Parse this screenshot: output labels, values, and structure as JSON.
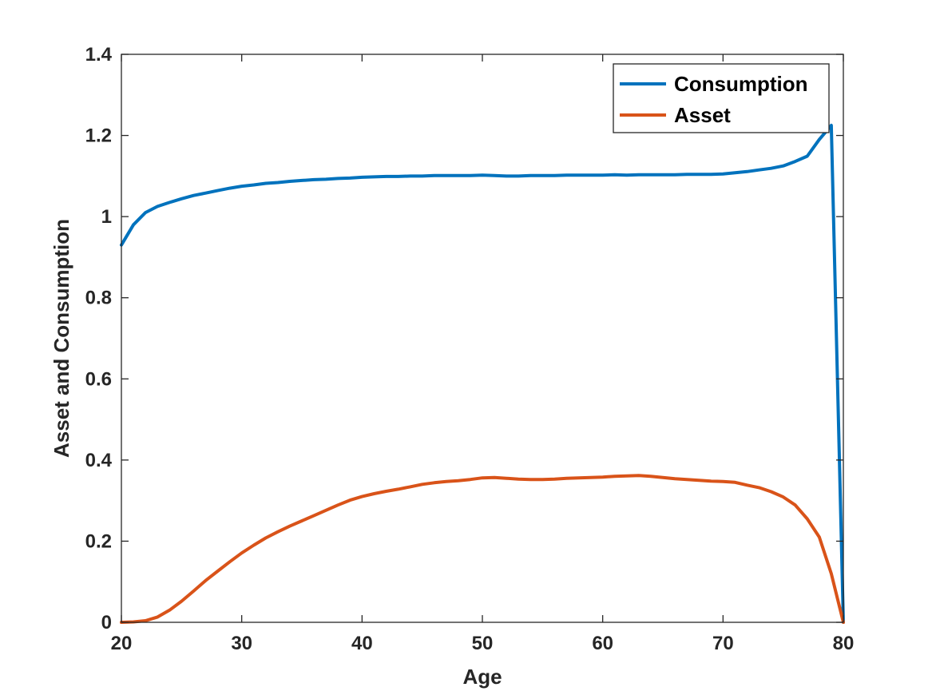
{
  "chart_data": {
    "type": "line",
    "xlabel": "Age",
    "ylabel": "Asset and Consumption",
    "xlim": [
      20,
      80
    ],
    "ylim": [
      0,
      1.4
    ],
    "xticks": [
      20,
      30,
      40,
      50,
      60,
      70,
      80
    ],
    "yticks": [
      0,
      0.2,
      0.4,
      0.6,
      0.8,
      1,
      1.2,
      1.4
    ],
    "xtick_labels": [
      "20",
      "30",
      "40",
      "50",
      "60",
      "70",
      "80"
    ],
    "ytick_labels": [
      "0",
      "0.2",
      "0.4",
      "0.6",
      "0.8",
      "1",
      "1.2",
      "1.4"
    ],
    "grid": false,
    "box": true,
    "legend_position": "top-right",
    "series": [
      {
        "name": "Consumption",
        "color": "#0072BD",
        "x": [
          20,
          21,
          22,
          23,
          24,
          25,
          26,
          27,
          28,
          29,
          30,
          31,
          32,
          33,
          34,
          35,
          36,
          37,
          38,
          39,
          40,
          41,
          42,
          43,
          44,
          45,
          46,
          47,
          48,
          49,
          50,
          51,
          52,
          53,
          54,
          55,
          56,
          57,
          58,
          59,
          60,
          61,
          62,
          63,
          64,
          65,
          66,
          67,
          68,
          69,
          70,
          71,
          72,
          73,
          74,
          75,
          76,
          77,
          78,
          79,
          80
        ],
        "y": [
          0.93,
          0.98,
          1.01,
          1.025,
          1.035,
          1.044,
          1.052,
          1.058,
          1.064,
          1.07,
          1.075,
          1.078,
          1.082,
          1.084,
          1.087,
          1.089,
          1.091,
          1.092,
          1.094,
          1.095,
          1.097,
          1.098,
          1.099,
          1.099,
          1.1,
          1.1,
          1.101,
          1.101,
          1.101,
          1.101,
          1.102,
          1.101,
          1.1,
          1.1,
          1.101,
          1.101,
          1.101,
          1.102,
          1.102,
          1.102,
          1.102,
          1.103,
          1.102,
          1.103,
          1.103,
          1.103,
          1.103,
          1.104,
          1.104,
          1.104,
          1.105,
          1.108,
          1.111,
          1.115,
          1.119,
          1.125,
          1.136,
          1.149,
          1.19,
          1.225,
          0
        ]
      },
      {
        "name": "Asset",
        "color": "#D95319",
        "x": [
          20,
          21,
          22,
          23,
          24,
          25,
          26,
          27,
          28,
          29,
          30,
          31,
          32,
          33,
          34,
          35,
          36,
          37,
          38,
          39,
          40,
          41,
          42,
          43,
          44,
          45,
          46,
          47,
          48,
          49,
          50,
          51,
          52,
          53,
          54,
          55,
          56,
          57,
          58,
          59,
          60,
          61,
          62,
          63,
          64,
          65,
          66,
          67,
          68,
          69,
          70,
          71,
          72,
          73,
          74,
          75,
          76,
          77,
          78,
          79,
          80
        ],
        "y": [
          0,
          0.001,
          0.004,
          0.013,
          0.03,
          0.052,
          0.077,
          0.103,
          0.126,
          0.149,
          0.171,
          0.19,
          0.208,
          0.223,
          0.237,
          0.25,
          0.263,
          0.276,
          0.289,
          0.301,
          0.31,
          0.317,
          0.323,
          0.328,
          0.334,
          0.34,
          0.344,
          0.347,
          0.349,
          0.352,
          0.356,
          0.357,
          0.355,
          0.353,
          0.352,
          0.352,
          0.353,
          0.355,
          0.356,
          0.357,
          0.358,
          0.36,
          0.361,
          0.362,
          0.36,
          0.357,
          0.354,
          0.352,
          0.35,
          0.348,
          0.347,
          0.345,
          0.338,
          0.332,
          0.322,
          0.309,
          0.289,
          0.255,
          0.21,
          0.12,
          0
        ]
      }
    ]
  }
}
